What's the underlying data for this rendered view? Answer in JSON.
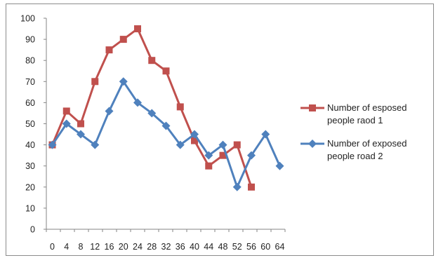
{
  "chart_data": {
    "type": "line",
    "title": "",
    "xlabel": "",
    "ylabel": "",
    "x": [
      0,
      4,
      8,
      12,
      16,
      20,
      24,
      28,
      32,
      36,
      40,
      44,
      48,
      52,
      56,
      60,
      64
    ],
    "x_tick_labels": [
      "0",
      "4",
      "8",
      "12",
      "16",
      "20",
      "24",
      "28",
      "32",
      "36",
      "40",
      "44",
      "48",
      "52",
      "56",
      "60",
      "64"
    ],
    "ylim": [
      0,
      100
    ],
    "y_tick_labels": [
      "0",
      "10",
      "20",
      "30",
      "40",
      "50",
      "60",
      "70",
      "80",
      "90",
      "100"
    ],
    "grid": false,
    "legend_position": "right",
    "series": [
      {
        "name_lines": [
          "Number of esposed",
          "people raod 1"
        ],
        "color": "#c0504d",
        "marker": "square",
        "values": [
          40,
          56,
          50,
          70,
          85,
          90,
          95,
          80,
          75,
          58,
          42,
          30,
          35,
          40,
          20,
          null,
          null
        ]
      },
      {
        "name_lines": [
          "Number of exposed",
          "people road 2"
        ],
        "color": "#4f81bd",
        "marker": "diamond",
        "values": [
          40,
          50,
          45,
          40,
          56,
          70,
          60,
          55,
          49,
          40,
          45,
          35,
          40,
          20,
          35,
          45,
          30
        ]
      }
    ]
  }
}
